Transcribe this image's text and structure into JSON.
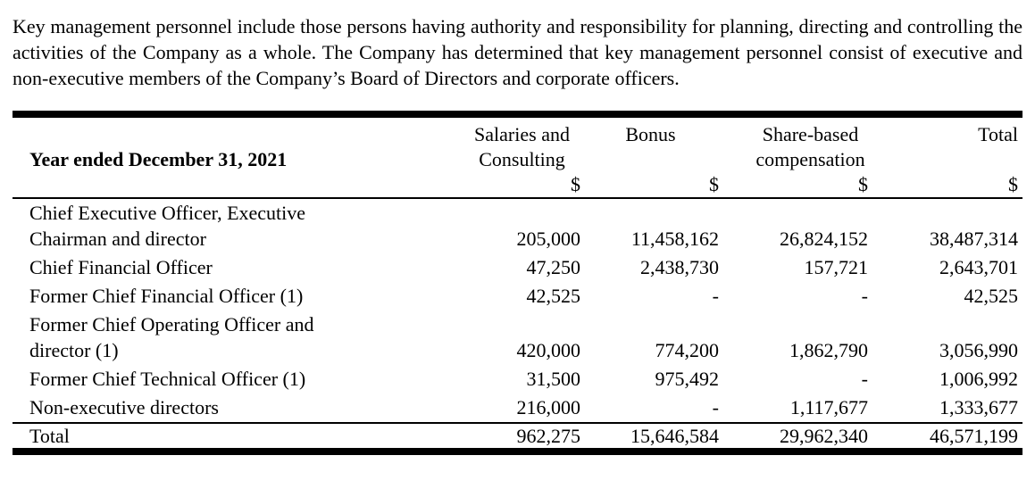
{
  "intro_paragraph": "Key management personnel include those persons having authority and responsibility for planning, directing and controlling the activities of the Company as a whole. The Company has determined that key management personnel consist of executive and non-executive members of the Company’s Board of Directors and corporate officers.",
  "table": {
    "year_label": "Year ended December 31, 2021",
    "dollar": "$",
    "columns": [
      {
        "line1": "Salaries and",
        "line2": "Consulting"
      },
      {
        "line1": "Bonus",
        "line2": ""
      },
      {
        "line1": "Share-based",
        "line2": "compensation"
      },
      {
        "line1": "Total",
        "line2": ""
      }
    ],
    "rows": [
      {
        "label": "Chief Executive Officer, Executive",
        "label2": "Chairman and director",
        "salaries": "205,000",
        "bonus": "11,458,162",
        "share": "26,824,152",
        "total": "38,487,314"
      },
      {
        "label": "Chief Financial Officer",
        "salaries": "47,250",
        "bonus": "2,438,730",
        "share": "157,721",
        "total": "2,643,701"
      },
      {
        "label": "Former Chief Financial Officer (1)",
        "salaries": "42,525",
        "bonus": "-",
        "share": "-",
        "total": "42,525"
      },
      {
        "label": "Former Chief Operating Officer and",
        "label2": "director (1)",
        "salaries": "420,000",
        "bonus": "774,200",
        "share": "1,862,790",
        "total": "3,056,990"
      },
      {
        "label": "Former Chief Technical Officer (1)",
        "salaries": "31,500",
        "bonus": "975,492",
        "share": "-",
        "total": "1,006,992"
      },
      {
        "label": "Non-executive directors",
        "salaries": "216,000",
        "bonus": "-",
        "share": "1,117,677",
        "total": "1,333,677"
      }
    ],
    "total_row": {
      "label": "Total",
      "salaries": "962,275",
      "bonus": "15,646,584",
      "share": "29,962,340",
      "total": "46,571,199"
    }
  }
}
